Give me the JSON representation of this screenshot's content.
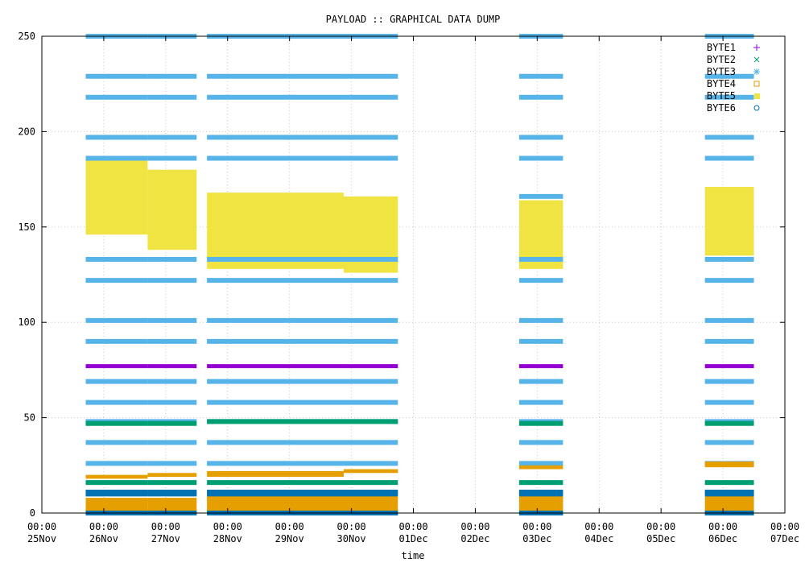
{
  "chart_data": {
    "type": "scatter",
    "title": "PAYLOAD :: GRAPHICAL DATA DUMP",
    "xlabel": "time",
    "ylabel": "",
    "ylim": [
      0,
      250
    ],
    "xlim": [
      "2017-11-25 00:00",
      "2017-12-07 00:00"
    ],
    "grid": true,
    "legend_position": "top-right",
    "yticks": [
      0,
      50,
      100,
      150,
      200,
      250
    ],
    "xticks": [
      {
        "time": "00:00",
        "date": "25Nov"
      },
      {
        "time": "00:00",
        "date": "26Nov"
      },
      {
        "time": "00:00",
        "date": "27Nov"
      },
      {
        "time": "00:00",
        "date": "28Nov"
      },
      {
        "time": "00:00",
        "date": "29Nov"
      },
      {
        "time": "00:00",
        "date": "30Nov"
      },
      {
        "time": "00:00",
        "date": "01Dec"
      },
      {
        "time": "00:00",
        "date": "02Dec"
      },
      {
        "time": "00:00",
        "date": "03Dec"
      },
      {
        "time": "00:00",
        "date": "04Dec"
      },
      {
        "time": "00:00",
        "date": "05Dec"
      },
      {
        "time": "00:00",
        "date": "06Dec"
      },
      {
        "time": "00:00",
        "date": "07Dec"
      }
    ],
    "time_ranges": [
      {
        "start": "2017-11-25 17:00",
        "end": "2017-11-26 17:00"
      },
      {
        "start": "2017-11-26 17:00",
        "end": "2017-11-27 12:00"
      },
      {
        "start": "2017-11-27 16:00",
        "end": "2017-11-29 21:00"
      },
      {
        "start": "2017-11-29 21:00",
        "end": "2017-11-30 18:00"
      },
      {
        "start": "2017-12-02 17:00",
        "end": "2017-12-03 10:00"
      },
      {
        "start": "2017-12-05 17:00",
        "end": "2017-12-06 12:00"
      }
    ],
    "series": [
      {
        "name": "BYTE1",
        "marker": "+",
        "color": "#9400d3",
        "values_by_range": [
          [
            77
          ],
          [
            77
          ],
          [
            77
          ],
          [
            77
          ],
          [
            77
          ],
          [
            77
          ]
        ]
      },
      {
        "name": "BYTE2",
        "marker": "x",
        "color": "#009e73",
        "values_by_range": [
          [
            16,
            47
          ],
          [
            16,
            47
          ],
          [
            16,
            48
          ],
          [
            16,
            48
          ],
          [
            16,
            47
          ],
          [
            16,
            47
          ]
        ]
      },
      {
        "name": "BYTE3",
        "marker": "*",
        "color": "#56b4e9",
        "values_by_range": [
          [
            0,
            26,
            37,
            48,
            58,
            69,
            90,
            101,
            122,
            133,
            186,
            197,
            218,
            229,
            250
          ],
          [
            0,
            26,
            37,
            48,
            58,
            69,
            90,
            101,
            122,
            133,
            186,
            197,
            218,
            229,
            250
          ],
          [
            0,
            26,
            37,
            48,
            58,
            69,
            90,
            101,
            122,
            133,
            186,
            197,
            218,
            229,
            250
          ],
          [
            0,
            26,
            37,
            48,
            58,
            69,
            90,
            101,
            122,
            133,
            186,
            197,
            218,
            229,
            250
          ],
          [
            0,
            26,
            37,
            48,
            58,
            69,
            90,
            101,
            122,
            133,
            166,
            186,
            197,
            218,
            229,
            250
          ],
          [
            0,
            26,
            37,
            48,
            58,
            69,
            90,
            101,
            122,
            133,
            186,
            197,
            218,
            229,
            250
          ]
        ]
      },
      {
        "name": "BYTE4",
        "marker": "square-open",
        "color": "#e69f00",
        "bands_by_range": [
          [
            [
              0,
              8
            ],
            [
              18,
              20
            ]
          ],
          [
            [
              0,
              8
            ],
            [
              19,
              21
            ]
          ],
          [
            [
              0,
              9
            ],
            [
              19,
              22
            ]
          ],
          [
            [
              0,
              9
            ],
            [
              21,
              23
            ]
          ],
          [
            [
              0,
              9
            ],
            [
              23,
              25
            ]
          ],
          [
            [
              0,
              9
            ],
            [
              24,
              27
            ]
          ]
        ]
      },
      {
        "name": "BYTE5",
        "marker": "square-filled",
        "color": "#f0e442",
        "bands_by_range": [
          [
            [
              146,
              185
            ]
          ],
          [
            [
              138,
              180
            ]
          ],
          [
            [
              128,
              168
            ]
          ],
          [
            [
              126,
              166
            ]
          ],
          [
            [
              128,
              164
            ]
          ],
          [
            [
              135,
              171
            ]
          ]
        ]
      },
      {
        "name": "BYTE6",
        "marker": "circle-open",
        "color": "#0072b2",
        "values_by_range": [
          [
            0,
            10,
            11
          ],
          [
            0,
            10,
            11
          ],
          [
            0,
            10,
            11
          ],
          [
            0,
            10,
            11
          ],
          [
            0,
            10,
            11
          ],
          [
            0,
            10,
            11
          ]
        ]
      }
    ]
  }
}
